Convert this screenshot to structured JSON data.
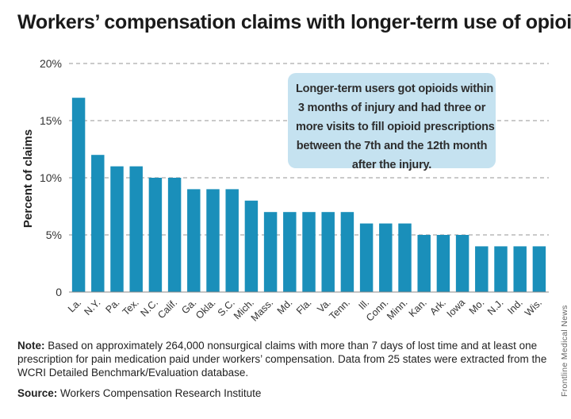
{
  "title": "Workers’ compensation claims with longer-term use of opioids",
  "chart_data": {
    "type": "bar",
    "ylabel": "Percent of claims",
    "xlabel": "",
    "ylim": [
      0,
      20
    ],
    "yticks": [
      0,
      5,
      10,
      15,
      20
    ],
    "ytick_labels": [
      "0",
      "5%",
      "10%",
      "15%",
      "20%"
    ],
    "grid": "horizontal dashed",
    "bar_color": "#1a8fba",
    "categories": [
      "La.",
      "N.Y.",
      "Pa.",
      "Tex.",
      "N.C.",
      "Calif.",
      "Ga.",
      "Okla.",
      "S.C.",
      "Mich.",
      "Mass.",
      "Md.",
      "Fla.",
      "Va.",
      "Tenn.",
      "Ill.",
      "Conn.",
      "Minn.",
      "Kan.",
      "Ark.",
      "Iowa",
      "Mo.",
      "N.J.",
      "Ind.",
      "Wis."
    ],
    "values": [
      17,
      12,
      11,
      11,
      10,
      10,
      9,
      9,
      9,
      8,
      7,
      7,
      7,
      7,
      7,
      6,
      6,
      6,
      5,
      5,
      5,
      4,
      4,
      4,
      4
    ],
    "annotation": [
      "Longer-term users got opioids within",
      "3 months of injury and had three or",
      "more visits to fill opioid prescriptions",
      "between the 7th and the 12th month",
      "after the injury."
    ]
  },
  "note": {
    "label": "Note:",
    "text": " Based on approximately 264,000 nonsurgical claims with more than 7 days of lost time and at least one prescription for pain medication paid under workers’ compensation. Data from 25 states were extracted from the WCRI Detailed Benchmark/Evaluation database."
  },
  "source": {
    "label": "Source:",
    "text": " Workers Compensation Research Institute"
  },
  "credit": "Frontline Medical News"
}
